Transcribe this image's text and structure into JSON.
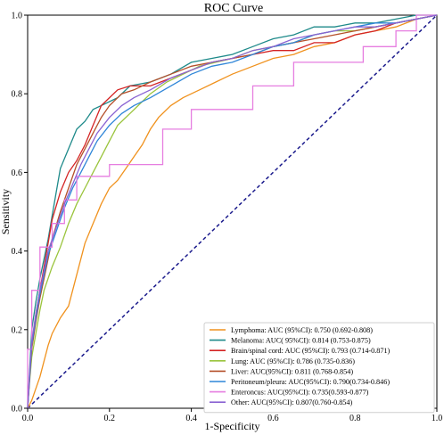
{
  "chart_data": {
    "type": "line",
    "title": "ROC Curve",
    "xlabel": "1-Specificity",
    "ylabel": "Sensitivity",
    "xlim": [
      0,
      1
    ],
    "ylim": [
      0,
      1
    ],
    "x_ticks": [
      "0.0",
      "0.2",
      "0.4",
      "0.6",
      "0.8",
      "1.0"
    ],
    "y_ticks": [
      "0.0",
      "0.2",
      "0.4",
      "0.6",
      "0.8",
      "1.0"
    ],
    "grid": false,
    "legend_position": "bottom-right",
    "reference_line": {
      "style": "dashed",
      "color": "#1a1a8c",
      "points": [
        [
          0,
          0
        ],
        [
          1,
          1
        ]
      ]
    },
    "series": [
      {
        "name": "Lymphoma:   AUC (95%CI):  0.750 (0.692-0.808)",
        "color": "#f0921e",
        "points": [
          [
            0,
            0
          ],
          [
            0.01,
            0.02
          ],
          [
            0.02,
            0.05
          ],
          [
            0.03,
            0.08
          ],
          [
            0.04,
            0.12
          ],
          [
            0.05,
            0.16
          ],
          [
            0.06,
            0.19
          ],
          [
            0.08,
            0.23
          ],
          [
            0.1,
            0.26
          ],
          [
            0.12,
            0.34
          ],
          [
            0.14,
            0.42
          ],
          [
            0.16,
            0.47
          ],
          [
            0.18,
            0.52
          ],
          [
            0.2,
            0.56
          ],
          [
            0.22,
            0.58
          ],
          [
            0.24,
            0.61
          ],
          [
            0.26,
            0.64
          ],
          [
            0.28,
            0.67
          ],
          [
            0.3,
            0.71
          ],
          [
            0.32,
            0.74
          ],
          [
            0.35,
            0.77
          ],
          [
            0.38,
            0.79
          ],
          [
            0.42,
            0.81
          ],
          [
            0.46,
            0.83
          ],
          [
            0.5,
            0.85
          ],
          [
            0.55,
            0.87
          ],
          [
            0.6,
            0.89
          ],
          [
            0.65,
            0.9
          ],
          [
            0.7,
            0.92
          ],
          [
            0.75,
            0.93
          ],
          [
            0.8,
            0.95
          ],
          [
            0.85,
            0.96
          ],
          [
            0.9,
            0.97
          ],
          [
            0.95,
            0.99
          ],
          [
            1,
            1
          ]
        ]
      },
      {
        "name": "Melanoma: AUC( 95%CI): 0.814 (0.753-0.875)",
        "color": "#1e8a8a",
        "points": [
          [
            0,
            0
          ],
          [
            0.005,
            0.1
          ],
          [
            0.01,
            0.2
          ],
          [
            0.02,
            0.27
          ],
          [
            0.03,
            0.33
          ],
          [
            0.04,
            0.38
          ],
          [
            0.05,
            0.43
          ],
          [
            0.06,
            0.49
          ],
          [
            0.07,
            0.55
          ],
          [
            0.08,
            0.61
          ],
          [
            0.1,
            0.66
          ],
          [
            0.12,
            0.71
          ],
          [
            0.14,
            0.73
          ],
          [
            0.16,
            0.76
          ],
          [
            0.18,
            0.77
          ],
          [
            0.2,
            0.78
          ],
          [
            0.22,
            0.79
          ],
          [
            0.25,
            0.82
          ],
          [
            0.3,
            0.83
          ],
          [
            0.35,
            0.85
          ],
          [
            0.4,
            0.88
          ],
          [
            0.45,
            0.89
          ],
          [
            0.5,
            0.9
          ],
          [
            0.55,
            0.92
          ],
          [
            0.6,
            0.94
          ],
          [
            0.65,
            0.95
          ],
          [
            0.7,
            0.97
          ],
          [
            0.75,
            0.97
          ],
          [
            0.8,
            0.98
          ],
          [
            0.85,
            0.98
          ],
          [
            0.9,
            0.99
          ],
          [
            0.95,
            1
          ],
          [
            1,
            1
          ]
        ]
      },
      {
        "name": "Brain/spinal cord: AUC (95%CI): 0.793 (0.714-0.871)",
        "color": "#d42424",
        "points": [
          [
            0,
            0
          ],
          [
            0.005,
            0.08
          ],
          [
            0.01,
            0.16
          ],
          [
            0.02,
            0.24
          ],
          [
            0.03,
            0.3
          ],
          [
            0.04,
            0.36
          ],
          [
            0.05,
            0.42
          ],
          [
            0.06,
            0.48
          ],
          [
            0.08,
            0.55
          ],
          [
            0.1,
            0.6
          ],
          [
            0.12,
            0.63
          ],
          [
            0.14,
            0.67
          ],
          [
            0.16,
            0.72
          ],
          [
            0.18,
            0.77
          ],
          [
            0.2,
            0.79
          ],
          [
            0.22,
            0.81
          ],
          [
            0.25,
            0.82
          ],
          [
            0.3,
            0.82
          ],
          [
            0.35,
            0.84
          ],
          [
            0.4,
            0.86
          ],
          [
            0.45,
            0.88
          ],
          [
            0.5,
            0.89
          ],
          [
            0.55,
            0.9
          ],
          [
            0.6,
            0.91
          ],
          [
            0.65,
            0.91
          ],
          [
            0.7,
            0.93
          ],
          [
            0.75,
            0.93
          ],
          [
            0.8,
            0.95
          ],
          [
            0.85,
            0.96
          ],
          [
            0.9,
            0.98
          ],
          [
            0.95,
            0.99
          ],
          [
            1,
            1
          ]
        ]
      },
      {
        "name": "Lung: AUC (95%CI): 0.786 (0.735-0.836)",
        "color": "#9ac43c",
        "points": [
          [
            0,
            0
          ],
          [
            0.005,
            0.07
          ],
          [
            0.01,
            0.13
          ],
          [
            0.02,
            0.19
          ],
          [
            0.03,
            0.25
          ],
          [
            0.04,
            0.3
          ],
          [
            0.06,
            0.36
          ],
          [
            0.08,
            0.41
          ],
          [
            0.1,
            0.47
          ],
          [
            0.12,
            0.52
          ],
          [
            0.14,
            0.56
          ],
          [
            0.16,
            0.6
          ],
          [
            0.18,
            0.64
          ],
          [
            0.2,
            0.68
          ],
          [
            0.22,
            0.72
          ],
          [
            0.25,
            0.75
          ],
          [
            0.28,
            0.78
          ],
          [
            0.3,
            0.8
          ],
          [
            0.34,
            0.83
          ],
          [
            0.38,
            0.85
          ],
          [
            0.42,
            0.87
          ],
          [
            0.46,
            0.88
          ],
          [
            0.5,
            0.89
          ],
          [
            0.55,
            0.91
          ],
          [
            0.6,
            0.92
          ],
          [
            0.65,
            0.93
          ],
          [
            0.7,
            0.95
          ],
          [
            0.75,
            0.96
          ],
          [
            0.8,
            0.96
          ],
          [
            0.85,
            0.97
          ],
          [
            0.9,
            0.98
          ],
          [
            0.95,
            0.99
          ],
          [
            1,
            1
          ]
        ]
      },
      {
        "name": "Liver: AUC(95%CI): 0.811 (0.768-0.854)",
        "color": "#b5502a",
        "points": [
          [
            0,
            0
          ],
          [
            0.005,
            0.08
          ],
          [
            0.01,
            0.15
          ],
          [
            0.02,
            0.22
          ],
          [
            0.03,
            0.28
          ],
          [
            0.04,
            0.33
          ],
          [
            0.05,
            0.38
          ],
          [
            0.06,
            0.43
          ],
          [
            0.08,
            0.5
          ],
          [
            0.1,
            0.56
          ],
          [
            0.12,
            0.62
          ],
          [
            0.14,
            0.66
          ],
          [
            0.16,
            0.7
          ],
          [
            0.18,
            0.74
          ],
          [
            0.2,
            0.77
          ],
          [
            0.23,
            0.8
          ],
          [
            0.26,
            0.81
          ],
          [
            0.3,
            0.83
          ],
          [
            0.35,
            0.85
          ],
          [
            0.4,
            0.87
          ],
          [
            0.45,
            0.88
          ],
          [
            0.5,
            0.89
          ],
          [
            0.55,
            0.9
          ],
          [
            0.6,
            0.92
          ],
          [
            0.65,
            0.93
          ],
          [
            0.7,
            0.94
          ],
          [
            0.75,
            0.95
          ],
          [
            0.8,
            0.96
          ],
          [
            0.85,
            0.97
          ],
          [
            0.9,
            0.98
          ],
          [
            0.95,
            0.99
          ],
          [
            1,
            1
          ]
        ]
      },
      {
        "name": "Peritoneum/pleura: AUC(95%CI): 0.790(0.734-0.846)",
        "color": "#2f86d8",
        "points": [
          [
            0,
            0
          ],
          [
            0.005,
            0.08
          ],
          [
            0.01,
            0.16
          ],
          [
            0.02,
            0.23
          ],
          [
            0.03,
            0.29
          ],
          [
            0.04,
            0.34
          ],
          [
            0.05,
            0.39
          ],
          [
            0.07,
            0.45
          ],
          [
            0.09,
            0.51
          ],
          [
            0.11,
            0.56
          ],
          [
            0.13,
            0.6
          ],
          [
            0.15,
            0.64
          ],
          [
            0.17,
            0.68
          ],
          [
            0.2,
            0.72
          ],
          [
            0.23,
            0.75
          ],
          [
            0.26,
            0.77
          ],
          [
            0.3,
            0.79
          ],
          [
            0.35,
            0.82
          ],
          [
            0.4,
            0.85
          ],
          [
            0.45,
            0.87
          ],
          [
            0.5,
            0.88
          ],
          [
            0.55,
            0.9
          ],
          [
            0.6,
            0.92
          ],
          [
            0.65,
            0.93
          ],
          [
            0.7,
            0.95
          ],
          [
            0.75,
            0.96
          ],
          [
            0.8,
            0.97
          ],
          [
            0.85,
            0.98
          ],
          [
            0.9,
            0.98
          ],
          [
            0.95,
            0.99
          ],
          [
            1,
            1
          ]
        ]
      },
      {
        "name": "Enteroncus: AUC(95%CI): 0.735(0.593-0.877)",
        "color": "#e67ee0",
        "points": [
          [
            0,
            0
          ],
          [
            0,
            0.15
          ],
          [
            0.01,
            0.15
          ],
          [
            0.01,
            0.3
          ],
          [
            0.03,
            0.3
          ],
          [
            0.03,
            0.41
          ],
          [
            0.06,
            0.41
          ],
          [
            0.06,
            0.47
          ],
          [
            0.09,
            0.47
          ],
          [
            0.09,
            0.53
          ],
          [
            0.12,
            0.53
          ],
          [
            0.12,
            0.59
          ],
          [
            0.2,
            0.59
          ],
          [
            0.2,
            0.62
          ],
          [
            0.33,
            0.62
          ],
          [
            0.33,
            0.71
          ],
          [
            0.4,
            0.71
          ],
          [
            0.4,
            0.76
          ],
          [
            0.55,
            0.76
          ],
          [
            0.55,
            0.82
          ],
          [
            0.65,
            0.82
          ],
          [
            0.65,
            0.88
          ],
          [
            0.82,
            0.88
          ],
          [
            0.82,
            0.92
          ],
          [
            0.9,
            0.92
          ],
          [
            0.9,
            0.96
          ],
          [
            0.95,
            0.96
          ],
          [
            0.95,
            1
          ],
          [
            1,
            1
          ]
        ]
      },
      {
        "name": "Other: AUC(95%CI): 0.807(0.760-0.854)",
        "color": "#8a63d2",
        "points": [
          [
            0,
            0
          ],
          [
            0.005,
            0.09
          ],
          [
            0.01,
            0.17
          ],
          [
            0.02,
            0.24
          ],
          [
            0.03,
            0.3
          ],
          [
            0.04,
            0.35
          ],
          [
            0.05,
            0.4
          ],
          [
            0.07,
            0.46
          ],
          [
            0.09,
            0.52
          ],
          [
            0.11,
            0.57
          ],
          [
            0.13,
            0.62
          ],
          [
            0.15,
            0.66
          ],
          [
            0.17,
            0.7
          ],
          [
            0.2,
            0.74
          ],
          [
            0.23,
            0.77
          ],
          [
            0.26,
            0.79
          ],
          [
            0.3,
            0.81
          ],
          [
            0.35,
            0.84
          ],
          [
            0.4,
            0.86
          ],
          [
            0.45,
            0.88
          ],
          [
            0.5,
            0.89
          ],
          [
            0.55,
            0.91
          ],
          [
            0.6,
            0.92
          ],
          [
            0.65,
            0.94
          ],
          [
            0.7,
            0.95
          ],
          [
            0.75,
            0.96
          ],
          [
            0.8,
            0.97
          ],
          [
            0.85,
            0.97
          ],
          [
            0.9,
            0.98
          ],
          [
            0.95,
            0.99
          ],
          [
            1,
            1
          ]
        ]
      }
    ]
  }
}
